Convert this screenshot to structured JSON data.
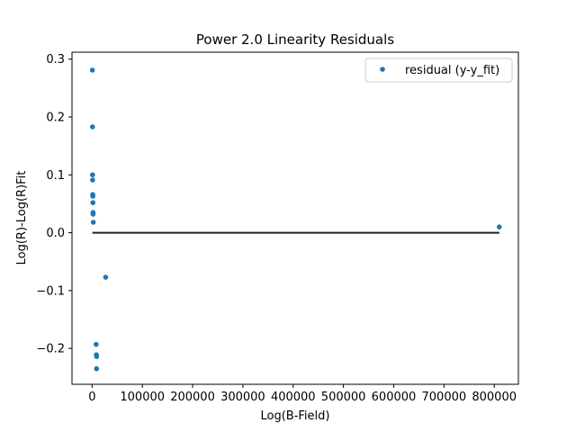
{
  "chart_data": {
    "type": "scatter",
    "title": "Power 2.0 Linearity Residuals",
    "xlabel": "Log(B-Field)",
    "ylabel": "Log(R)-Log(R)Fit",
    "xlim": [
      -40000,
      848000
    ],
    "ylim": [
      -0.262,
      0.312
    ],
    "xticks": [
      0,
      100000,
      200000,
      300000,
      400000,
      500000,
      600000,
      700000,
      800000
    ],
    "yticks": [
      -0.2,
      -0.1,
      0.0,
      0.1,
      0.2,
      0.3
    ],
    "xtick_labels": [
      "0",
      "100000",
      "200000",
      "300000",
      "400000",
      "500000",
      "600000",
      "700000",
      "800000"
    ],
    "ytick_labels": [
      "−0.2",
      "−0.1",
      "0.0",
      "0.1",
      "0.2",
      "0.3"
    ],
    "grid": false,
    "legend_position": "top-right",
    "series": [
      {
        "name": "residual (y-y_fit)",
        "color": "#1f77b4",
        "points": [
          {
            "x": 600,
            "y": 0.281
          },
          {
            "x": 800,
            "y": 0.183
          },
          {
            "x": 900,
            "y": 0.1
          },
          {
            "x": 1000,
            "y": 0.091
          },
          {
            "x": 1200,
            "y": 0.066
          },
          {
            "x": 1400,
            "y": 0.063
          },
          {
            "x": 1600,
            "y": 0.052
          },
          {
            "x": 1800,
            "y": 0.035
          },
          {
            "x": 2000,
            "y": 0.032
          },
          {
            "x": 2400,
            "y": 0.018
          },
          {
            "x": 27000,
            "y": -0.077
          },
          {
            "x": 8000,
            "y": -0.193
          },
          {
            "x": 8500,
            "y": -0.211
          },
          {
            "x": 9000,
            "y": -0.214
          },
          {
            "x": 8800,
            "y": -0.235
          },
          {
            "x": 810000,
            "y": 0.01
          }
        ]
      }
    ],
    "reference_line": {
      "y": 0.0,
      "x_from": 600,
      "x_to": 810000,
      "color": "#222222"
    }
  }
}
